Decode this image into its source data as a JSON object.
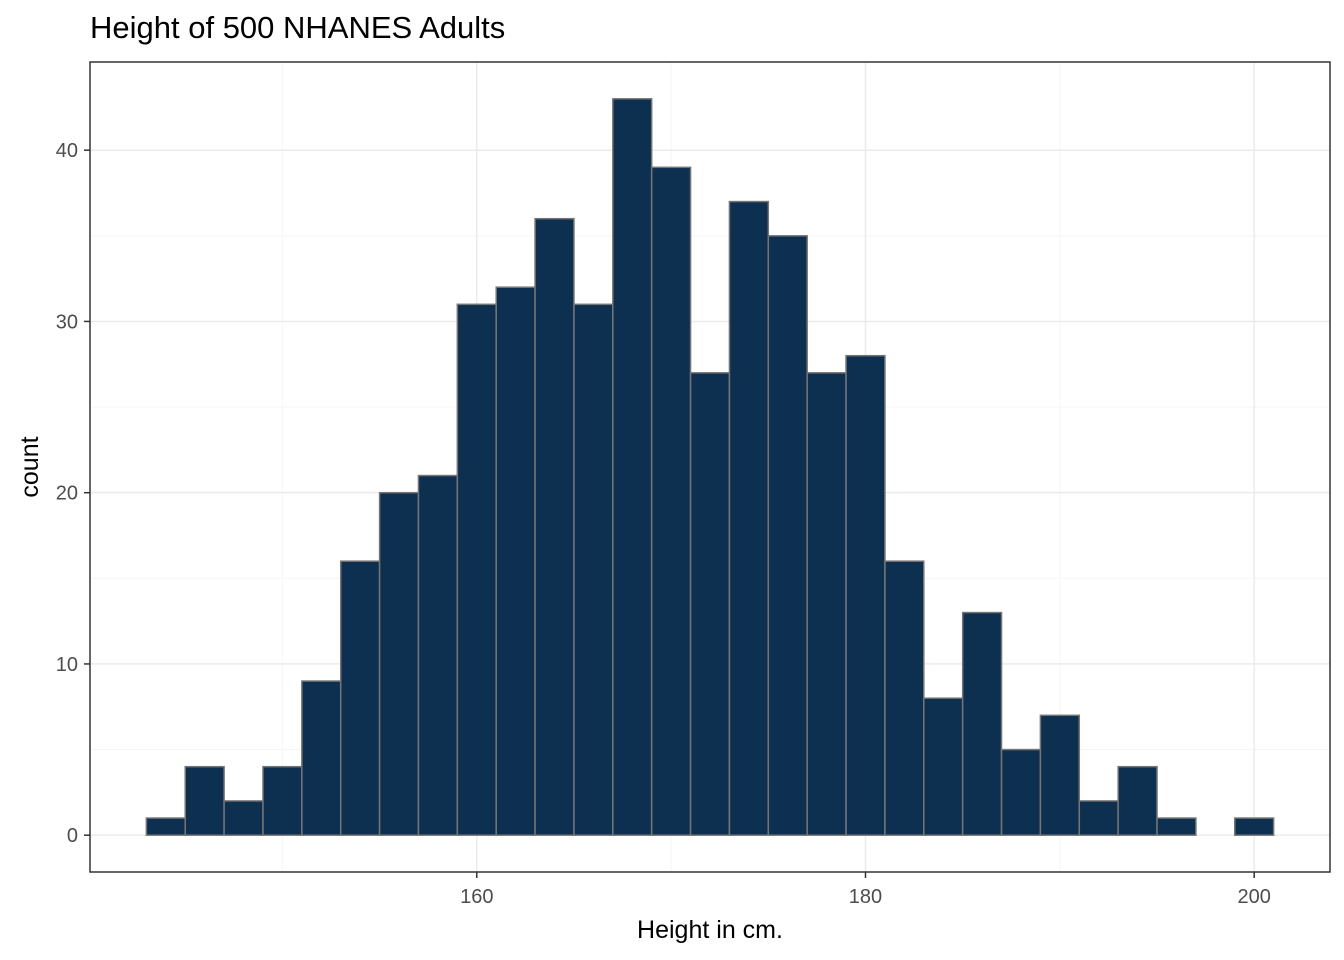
{
  "chart_data": {
    "type": "bar",
    "title": "Height of 500 NHANES Adults",
    "xlabel": "Height in cm.",
    "ylabel": "count",
    "bin_width": 2,
    "bins": [
      {
        "x0": 143,
        "x1": 145,
        "count": 1
      },
      {
        "x0": 145,
        "x1": 147,
        "count": 4
      },
      {
        "x0": 147,
        "x1": 149,
        "count": 2
      },
      {
        "x0": 149,
        "x1": 151,
        "count": 4
      },
      {
        "x0": 151,
        "x1": 153,
        "count": 9
      },
      {
        "x0": 153,
        "x1": 155,
        "count": 16
      },
      {
        "x0": 155,
        "x1": 157,
        "count": 20
      },
      {
        "x0": 157,
        "x1": 159,
        "count": 21
      },
      {
        "x0": 159,
        "x1": 161,
        "count": 31
      },
      {
        "x0": 161,
        "x1": 163,
        "count": 32
      },
      {
        "x0": 163,
        "x1": 165,
        "count": 36
      },
      {
        "x0": 165,
        "x1": 167,
        "count": 31
      },
      {
        "x0": 167,
        "x1": 169,
        "count": 43
      },
      {
        "x0": 169,
        "x1": 171,
        "count": 39
      },
      {
        "x0": 171,
        "x1": 173,
        "count": 27
      },
      {
        "x0": 173,
        "x1": 175,
        "count": 37
      },
      {
        "x0": 175,
        "x1": 177,
        "count": 35
      },
      {
        "x0": 177,
        "x1": 179,
        "count": 27
      },
      {
        "x0": 179,
        "x1": 181,
        "count": 28
      },
      {
        "x0": 181,
        "x1": 183,
        "count": 16
      },
      {
        "x0": 183,
        "x1": 185,
        "count": 8
      },
      {
        "x0": 185,
        "x1": 187,
        "count": 13
      },
      {
        "x0": 187,
        "x1": 189,
        "count": 5
      },
      {
        "x0": 189,
        "x1": 191,
        "count": 7
      },
      {
        "x0": 191,
        "x1": 193,
        "count": 2
      },
      {
        "x0": 193,
        "x1": 195,
        "count": 4
      },
      {
        "x0": 195,
        "x1": 197,
        "count": 1
      },
      {
        "x0": 197,
        "x1": 199,
        "count": 0
      },
      {
        "x0": 199,
        "x1": 201,
        "count": 1
      }
    ],
    "xlim": [
      140.1,
      203.9
    ],
    "ylim": [
      -2.15,
      45.15
    ],
    "x_ticks": [
      160,
      180,
      200
    ],
    "x_minor_ticks": [
      150,
      170,
      190
    ],
    "y_ticks": [
      0,
      10,
      20,
      30,
      40
    ],
    "y_minor_ticks": [
      5,
      15,
      25,
      35
    ],
    "grid": true,
    "bar_fill": "#0d3050",
    "bar_outline": "#757575",
    "grid_major_color": "#ebebeb",
    "grid_minor_color": "#f5f5f5",
    "panel_border_color": "#333333"
  }
}
